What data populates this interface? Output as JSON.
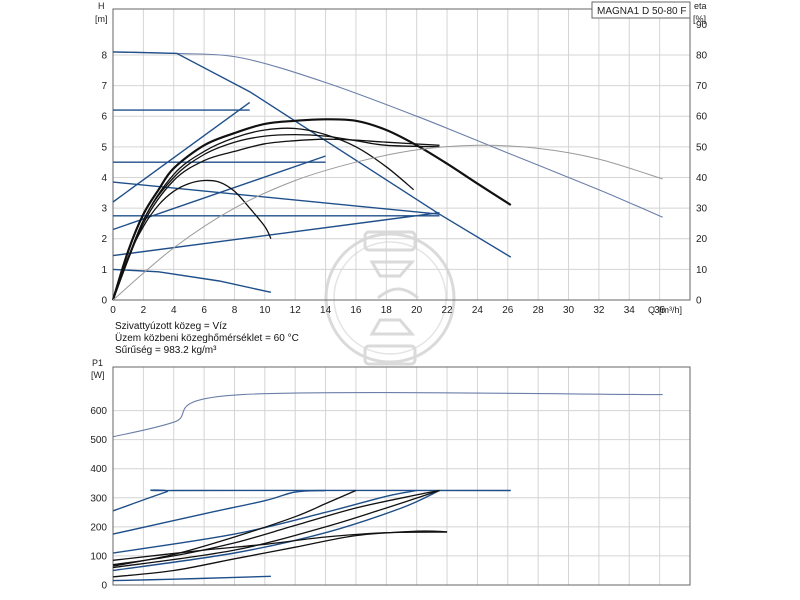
{
  "model": "MAGNA1 D 50-80 F",
  "info_lines": [
    "Szivattyúzott közeg = Víz",
    "Üzem közbeni közeghőmérséklet = 60 °C",
    "Sűrűség = 983.2 kg/m³"
  ],
  "colors": {
    "grid": "#d4d4d4",
    "system_curve": "#1f4f8a",
    "max_curve": "#6b7fa8",
    "pump_curve": "#111111",
    "efficiency_curve": "#9a9a9a",
    "watermark": "#bdbdbd"
  },
  "watermark_icon": "pump-logo-icon",
  "chart_data": [
    {
      "type": "line",
      "name": "head",
      "ylabel": "H",
      "yunit": "[m]",
      "y2label": "eta",
      "y2unit": "[%]",
      "xlabel": "Q",
      "xunit": "[m³/h]",
      "xlim": [
        0,
        38
      ],
      "ylim": [
        0,
        9.5
      ],
      "y2lim": [
        0,
        95
      ],
      "grid": true,
      "x_ticks": [
        0,
        2,
        4,
        6,
        8,
        10,
        12,
        14,
        16,
        18,
        20,
        22,
        24,
        26,
        28,
        30,
        32,
        34,
        36
      ],
      "y_ticks": [
        0,
        1,
        2,
        3,
        4,
        5,
        6,
        7,
        8
      ],
      "y2_ticks": [
        0,
        10,
        20,
        30,
        40,
        50,
        60,
        70,
        80,
        90
      ],
      "series": [
        {
          "kind": "max",
          "axis": "y",
          "points": [
            [
              0,
              8.1
            ],
            [
              4.2,
              8.05
            ],
            [
              8.5,
              7.9
            ],
            [
              14,
              7.1
            ],
            [
              20,
              6.0
            ],
            [
              26,
              4.8
            ],
            [
              32,
              3.6
            ],
            [
              36.2,
              2.7
            ]
          ]
        },
        {
          "kind": "system",
          "axis": "y",
          "points": [
            [
              0,
              8.1
            ],
            [
              4.2,
              8.05
            ],
            [
              9,
              6.8
            ],
            [
              21.5,
              2.8
            ]
          ]
        },
        {
          "kind": "system",
          "axis": "y",
          "points": [
            [
              21.5,
              2.8
            ],
            [
              26.2,
              1.4
            ]
          ]
        },
        {
          "kind": "system",
          "axis": "y",
          "points": [
            [
              0,
              6.2
            ],
            [
              9,
              6.2
            ]
          ]
        },
        {
          "kind": "system",
          "axis": "y",
          "points": [
            [
              0,
              4.5
            ],
            [
              14,
              4.5
            ]
          ]
        },
        {
          "kind": "system",
          "axis": "y",
          "points": [
            [
              0,
              3.85
            ],
            [
              21.5,
              2.8
            ]
          ]
        },
        {
          "kind": "system",
          "axis": "y",
          "points": [
            [
              0,
              2.75
            ],
            [
              21.5,
              2.75
            ]
          ]
        },
        {
          "kind": "system",
          "axis": "y",
          "points": [
            [
              0,
              1.0
            ],
            [
              3,
              0.92
            ],
            [
              7,
              0.62
            ],
            [
              10.4,
              0.25
            ]
          ]
        },
        {
          "kind": "system",
          "axis": "y",
          "points": [
            [
              0,
              3.2
            ],
            [
              9,
              6.45
            ]
          ]
        },
        {
          "kind": "system",
          "axis": "y",
          "points": [
            [
              0,
              2.3
            ],
            [
              14,
              4.7
            ]
          ]
        },
        {
          "kind": "system",
          "axis": "y",
          "points": [
            [
              0,
              1.45
            ],
            [
              21.5,
              2.85
            ]
          ]
        },
        {
          "kind": "pump",
          "axis": "y",
          "points": [
            [
              0,
              0
            ],
            [
              1,
              1.6
            ],
            [
              2,
              2.8
            ],
            [
              3,
              3.6
            ],
            [
              4,
              4.3
            ],
            [
              6,
              5.05
            ],
            [
              8,
              5.45
            ],
            [
              10,
              5.75
            ],
            [
              12,
              5.85
            ],
            [
              14,
              5.9
            ],
            [
              16,
              5.85
            ],
            [
              18,
              5.55
            ],
            [
              20,
              5.05
            ],
            [
              22,
              4.45
            ],
            [
              24,
              3.8
            ],
            [
              26.2,
              3.1
            ]
          ]
        },
        {
          "kind": "pump",
          "axis": "y",
          "points": [
            [
              0,
              0
            ],
            [
              2,
              2.6
            ],
            [
              4,
              4.1
            ],
            [
              6,
              4.85
            ],
            [
              8,
              5.3
            ],
            [
              10,
              5.55
            ],
            [
              12,
              5.6
            ],
            [
              14,
              5.4
            ],
            [
              16,
              5.0
            ],
            [
              18,
              4.35
            ],
            [
              19.8,
              3.6
            ]
          ]
        },
        {
          "kind": "pump",
          "axis": "y",
          "points": [
            [
              0,
              0
            ],
            [
              2,
              2.6
            ],
            [
              4,
              4.0
            ],
            [
              6,
              4.75
            ],
            [
              8,
              5.15
            ],
            [
              10,
              5.35
            ],
            [
              12,
              5.4
            ],
            [
              14,
              5.35
            ],
            [
              16,
              5.2
            ],
            [
              18,
              5.05
            ],
            [
              21.5,
              5.0
            ]
          ]
        },
        {
          "kind": "pump",
          "axis": "y",
          "points": [
            [
              0,
              0
            ],
            [
              2,
              2.5
            ],
            [
              4,
              3.9
            ],
            [
              6,
              4.55
            ],
            [
              8,
              4.85
            ],
            [
              10,
              5.1
            ],
            [
              12,
              5.2
            ],
            [
              14,
              5.25
            ],
            [
              16,
              5.22
            ],
            [
              18,
              5.15
            ],
            [
              21.5,
              5.05
            ]
          ]
        },
        {
          "kind": "pump",
          "axis": "y",
          "points": [
            [
              0,
              0
            ],
            [
              1,
              1.4
            ],
            [
              2,
              2.4
            ],
            [
              3,
              3.1
            ],
            [
              4,
              3.55
            ],
            [
              5,
              3.8
            ],
            [
              6,
              3.9
            ],
            [
              7,
              3.85
            ],
            [
              8,
              3.55
            ],
            [
              9,
              3.0
            ],
            [
              10,
              2.4
            ],
            [
              10.4,
              2.0
            ]
          ]
        },
        {
          "kind": "efficiency",
          "axis": "y2",
          "points": [
            [
              0,
              0
            ],
            [
              4,
              17
            ],
            [
              8,
              30
            ],
            [
              12,
              39
            ],
            [
              16,
              45
            ],
            [
              20,
              49
            ],
            [
              24,
              50.5
            ],
            [
              28,
              49.5
            ],
            [
              32,
              46
            ],
            [
              36.2,
              39.5
            ]
          ]
        }
      ]
    },
    {
      "type": "line",
      "name": "power",
      "ylabel": "P1",
      "yunit": "[W]",
      "xlim": [
        0,
        38
      ],
      "ylim": [
        0,
        750
      ],
      "grid": true,
      "y_ticks": [
        0,
        100,
        200,
        300,
        400,
        500,
        600
      ],
      "series": [
        {
          "kind": "max",
          "points": [
            [
              0,
              510
            ],
            [
              4,
              560
            ],
            [
              8.5,
              655
            ],
            [
              36.2,
              655
            ]
          ]
        },
        {
          "kind": "system",
          "points": [
            [
              0,
              255
            ],
            [
              3.5,
              320
            ],
            [
              4.2,
              325
            ],
            [
              26.2,
              325
            ]
          ]
        },
        {
          "kind": "system",
          "points": [
            [
              0,
              175
            ],
            [
              6,
              245
            ],
            [
              10,
              290
            ],
            [
              12,
              320
            ],
            [
              14,
              325
            ]
          ]
        },
        {
          "kind": "system",
          "points": [
            [
              0,
              110
            ],
            [
              8,
              175
            ],
            [
              14,
              250
            ],
            [
              18,
              305
            ],
            [
              20,
              325
            ]
          ]
        },
        {
          "kind": "system",
          "points": [
            [
              0,
              50
            ],
            [
              8,
              110
            ],
            [
              14,
              180
            ],
            [
              19,
              265
            ],
            [
              21.5,
              325
            ]
          ]
        },
        {
          "kind": "pump",
          "points": [
            [
              0,
              65
            ],
            [
              4,
              105
            ],
            [
              8,
              165
            ],
            [
              12,
              235
            ],
            [
              14,
              280
            ],
            [
              16,
              325
            ]
          ]
        },
        {
          "kind": "pump",
          "points": [
            [
              0,
              70
            ],
            [
              4,
              100
            ],
            [
              8,
              145
            ],
            [
              12,
              205
            ],
            [
              16,
              265
            ],
            [
              20,
              310
            ],
            [
              21.5,
              325
            ]
          ]
        },
        {
          "kind": "pump",
          "points": [
            [
              0,
              60
            ],
            [
              8,
              120
            ],
            [
              14,
              200
            ],
            [
              18,
              265
            ],
            [
              21.5,
              325
            ]
          ]
        },
        {
          "kind": "pump",
          "points": [
            [
              0,
              85
            ],
            [
              6,
              120
            ],
            [
              10,
              140
            ],
            [
              14,
              165
            ],
            [
              18,
              180
            ],
            [
              22,
              182
            ]
          ]
        },
        {
          "kind": "pump",
          "points": [
            [
              0,
              28
            ],
            [
              4,
              50
            ],
            [
              8,
              90
            ],
            [
              12,
              130
            ],
            [
              16,
              170
            ],
            [
              20,
              185
            ],
            [
              22,
              183
            ]
          ]
        },
        {
          "kind": "system",
          "points": [
            [
              0,
              15
            ],
            [
              4,
              20
            ],
            [
              8,
              26
            ],
            [
              10.4,
              30
            ]
          ]
        }
      ]
    }
  ]
}
